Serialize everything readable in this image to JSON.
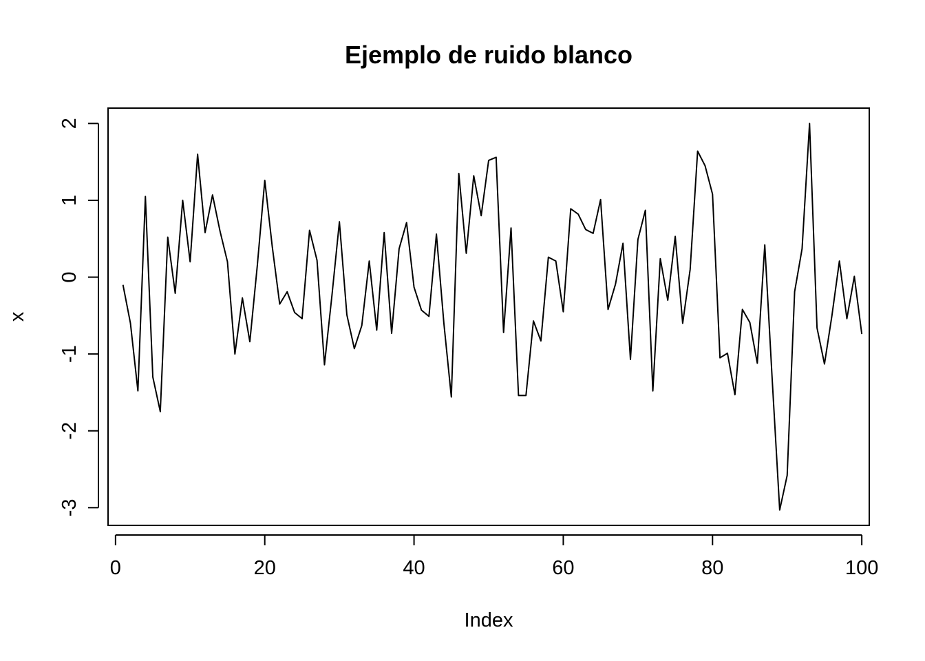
{
  "chart_data": {
    "type": "line",
    "title": "Ejemplo de ruido blanco",
    "xlabel": "Index",
    "ylabel": "x",
    "xlim": [
      -1,
      101
    ],
    "ylim": [
      -3.23,
      2.2
    ],
    "x_ticks": [
      0,
      20,
      40,
      60,
      80,
      100
    ],
    "y_ticks": [
      -3,
      -2,
      -1,
      0,
      1,
      2
    ],
    "x_tick_labels": [
      "0",
      "20",
      "40",
      "60",
      "80",
      "100"
    ],
    "y_tick_labels": [
      "-3",
      "-2",
      "-1",
      "0",
      "1",
      "2"
    ],
    "grid": false,
    "legend": "none",
    "series": [
      {
        "values": [
          -0.1,
          -0.6,
          -1.48,
          1.05,
          -1.3,
          -1.75,
          0.52,
          -0.21,
          1.0,
          0.2,
          1.6,
          0.58,
          1.07,
          0.6,
          0.2,
          -1.0,
          -0.27,
          -0.84,
          0.15,
          1.26,
          0.4,
          -0.35,
          -0.19,
          -0.46,
          -0.54,
          0.61,
          0.22,
          -1.14,
          -0.24,
          0.72,
          -0.49,
          -0.93,
          -0.63,
          0.21,
          -0.69,
          0.58,
          -0.73,
          0.37,
          0.71,
          -0.13,
          -0.43,
          -0.51,
          0.56,
          -0.6,
          -1.56,
          1.35,
          0.31,
          1.32,
          0.8,
          1.52,
          1.56,
          -0.72,
          0.64,
          -1.54,
          -1.54,
          -0.57,
          -0.83,
          0.26,
          0.21,
          -0.45,
          0.89,
          0.82,
          0.62,
          0.57,
          1.01,
          -0.42,
          -0.09,
          0.44,
          -1.07,
          0.49,
          0.87,
          -1.48,
          0.24,
          -0.3,
          0.53,
          -0.6,
          0.1,
          1.64,
          1.45,
          1.08,
          -1.05,
          -0.99,
          -1.53,
          -0.42,
          -0.59,
          -1.12,
          0.42,
          -1.34,
          -3.03,
          -2.58,
          -0.19,
          0.37,
          2.0,
          -0.66,
          -1.13,
          -0.5,
          0.21,
          -0.54,
          0.01,
          -0.74
        ]
      }
    ]
  }
}
